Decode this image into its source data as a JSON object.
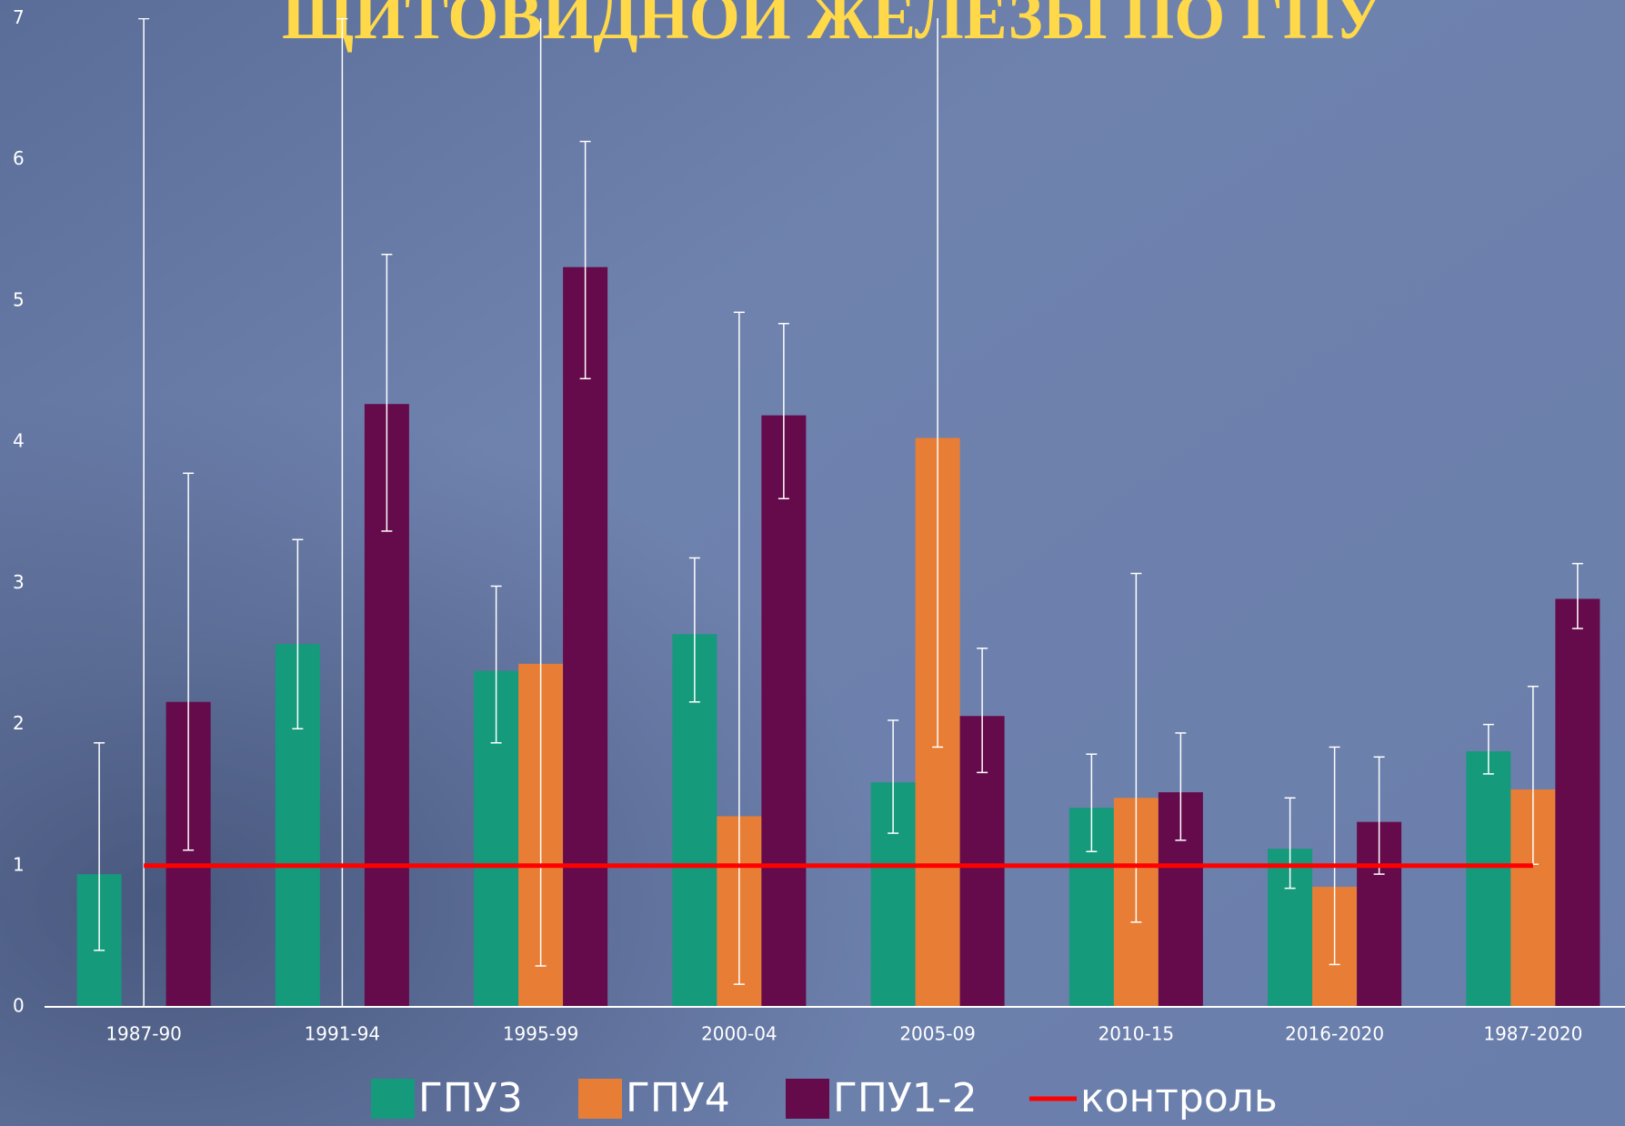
{
  "chart_data": {
    "type": "bar",
    "title": "ЩИТОВИДНОЙ ЖЕЛЕЗЫ ПО ГПУ",
    "categories": [
      "1987-90",
      "1991-94",
      "1995-99",
      "2000-04",
      "2005-09",
      "2010-15",
      "2016-2020",
      "1987-2020"
    ],
    "series": [
      {
        "name": "ГПУ3",
        "color": "#159a7c",
        "values": [
          0.94,
          2.57,
          2.38,
          2.64,
          1.59,
          1.41,
          1.12,
          1.81
        ],
        "errors_low": [
          0.54,
          0.6,
          0.51,
          0.48,
          0.36,
          0.31,
          0.28,
          0.16
        ],
        "errors_high": [
          0.93,
          0.74,
          0.6,
          0.54,
          0.44,
          0.38,
          0.36,
          0.19
        ]
      },
      {
        "name": "ГПУ4",
        "color": "#e87e35",
        "values": [
          0,
          0,
          2.43,
          1.35,
          4.03,
          1.48,
          0.85,
          1.54
        ],
        "errors_low": [
          0,
          0,
          2.14,
          1.19,
          2.19,
          0.88,
          0.55,
          0.53
        ],
        "errors_high": [
          7,
          7,
          4.6,
          3.57,
          3.0,
          1.59,
          0.99,
          0.73
        ]
      },
      {
        "name": "ГПУ1-2",
        "color": "#650a4a",
        "values": [
          2.16,
          4.27,
          5.24,
          4.19,
          2.06,
          1.52,
          1.31,
          2.89
        ],
        "errors_low": [
          1.05,
          0.9,
          0.79,
          0.59,
          0.4,
          0.34,
          0.37,
          0.21
        ],
        "errors_high": [
          1.62,
          1.06,
          0.89,
          0.65,
          0.48,
          0.42,
          0.46,
          0.25
        ]
      },
      {
        "name": "контроль",
        "type": "line",
        "color": "#ff0000",
        "values": [
          1,
          1,
          1,
          1,
          1,
          1,
          1,
          1
        ]
      }
    ],
    "ylim": [
      0,
      7
    ],
    "yticks": [
      0,
      1,
      2,
      3,
      4,
      5,
      6,
      7
    ],
    "legend": "bottom"
  }
}
